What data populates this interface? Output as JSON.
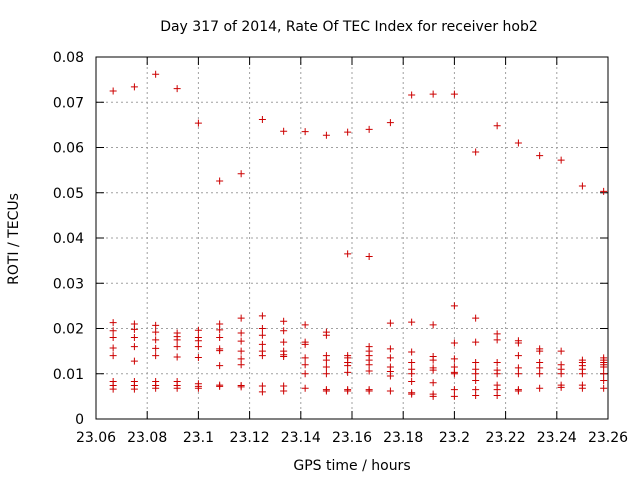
{
  "chart_data": {
    "type": "scatter",
    "title": "Day 317 of 2014, Rate Of TEC Index for receiver hob2",
    "xlabel": "GPS time / hours",
    "ylabel": "ROTI / TECUs",
    "xlim": [
      23.06,
      23.26
    ],
    "ylim": [
      0,
      0.08
    ],
    "xticks": [
      23.06,
      23.08,
      23.1,
      23.12,
      23.14,
      23.16,
      23.18,
      23.2,
      23.22,
      23.24,
      23.26
    ],
    "xtick_labels": [
      "23.06",
      "23.08",
      "23.1",
      "23.12",
      "23.14",
      "23.16",
      "23.18",
      "23.2",
      "23.22",
      "23.24",
      "23.26"
    ],
    "yticks": [
      0,
      0.01,
      0.02,
      0.03,
      0.04,
      0.05,
      0.06,
      0.07,
      0.08
    ],
    "ytick_labels": [
      "0",
      "0.01",
      "0.02",
      "0.03",
      "0.04",
      "0.05",
      "0.06",
      "0.07",
      "0.08"
    ],
    "grid": true,
    "marker": "+",
    "marker_color": "#cc0000",
    "series": [
      {
        "name": "ROTI",
        "points": [
          [
            23.0667,
            0.0725
          ],
          [
            23.0667,
            0.0213
          ],
          [
            23.0667,
            0.0195
          ],
          [
            23.0667,
            0.018
          ],
          [
            23.0667,
            0.0157
          ],
          [
            23.0667,
            0.014
          ],
          [
            23.0667,
            0.0083
          ],
          [
            23.0667,
            0.0074
          ],
          [
            23.0667,
            0.0066
          ],
          [
            23.075,
            0.0734
          ],
          [
            23.075,
            0.021
          ],
          [
            23.075,
            0.0198
          ],
          [
            23.075,
            0.018
          ],
          [
            23.075,
            0.016
          ],
          [
            23.075,
            0.0128
          ],
          [
            23.075,
            0.0083
          ],
          [
            23.075,
            0.0074
          ],
          [
            23.075,
            0.0066
          ],
          [
            23.0833,
            0.0762
          ],
          [
            23.0833,
            0.0207
          ],
          [
            23.0833,
            0.0192
          ],
          [
            23.0833,
            0.0175
          ],
          [
            23.0833,
            0.0156
          ],
          [
            23.0833,
            0.014
          ],
          [
            23.0833,
            0.0083
          ],
          [
            23.0833,
            0.0074
          ],
          [
            23.0833,
            0.0068
          ],
          [
            23.0917,
            0.073
          ],
          [
            23.0917,
            0.019
          ],
          [
            23.0917,
            0.0182
          ],
          [
            23.0917,
            0.0175
          ],
          [
            23.0917,
            0.016
          ],
          [
            23.0917,
            0.0137
          ],
          [
            23.0917,
            0.0083
          ],
          [
            23.0917,
            0.0074
          ],
          [
            23.0917,
            0.0068
          ],
          [
            23.1,
            0.0654
          ],
          [
            23.1,
            0.0196
          ],
          [
            23.1,
            0.018
          ],
          [
            23.1,
            0.0173
          ],
          [
            23.1,
            0.016
          ],
          [
            23.1,
            0.0136
          ],
          [
            23.1,
            0.0078
          ],
          [
            23.1,
            0.0072
          ],
          [
            23.1,
            0.0068
          ],
          [
            23.1083,
            0.0526
          ],
          [
            23.1083,
            0.021
          ],
          [
            23.1083,
            0.0197
          ],
          [
            23.1083,
            0.018
          ],
          [
            23.1083,
            0.0155
          ],
          [
            23.1083,
            0.0151
          ],
          [
            23.1083,
            0.0118
          ],
          [
            23.1083,
            0.0075
          ],
          [
            23.1083,
            0.0072
          ],
          [
            23.1167,
            0.0542
          ],
          [
            23.1167,
            0.0223
          ],
          [
            23.1167,
            0.019
          ],
          [
            23.1167,
            0.0172
          ],
          [
            23.1167,
            0.015
          ],
          [
            23.1167,
            0.0133
          ],
          [
            23.1167,
            0.012
          ],
          [
            23.1167,
            0.0074
          ],
          [
            23.1167,
            0.0071
          ],
          [
            23.125,
            0.0662
          ],
          [
            23.125,
            0.0228
          ],
          [
            23.125,
            0.02
          ],
          [
            23.125,
            0.0185
          ],
          [
            23.125,
            0.0165
          ],
          [
            23.125,
            0.015
          ],
          [
            23.125,
            0.014
          ],
          [
            23.125,
            0.0073
          ],
          [
            23.125,
            0.006
          ],
          [
            23.1333,
            0.0636
          ],
          [
            23.1333,
            0.0216
          ],
          [
            23.1333,
            0.0195
          ],
          [
            23.1333,
            0.017
          ],
          [
            23.1333,
            0.015
          ],
          [
            23.1333,
            0.0142
          ],
          [
            23.1333,
            0.0138
          ],
          [
            23.1333,
            0.0073
          ],
          [
            23.1333,
            0.0062
          ],
          [
            23.1417,
            0.0635
          ],
          [
            23.1417,
            0.0208
          ],
          [
            23.1417,
            0.017
          ],
          [
            23.1417,
            0.0165
          ],
          [
            23.1417,
            0.0135
          ],
          [
            23.1417,
            0.012
          ],
          [
            23.1417,
            0.01
          ],
          [
            23.1417,
            0.0068
          ],
          [
            23.15,
            0.0627
          ],
          [
            23.15,
            0.0192
          ],
          [
            23.15,
            0.0185
          ],
          [
            23.15,
            0.014
          ],
          [
            23.15,
            0.013
          ],
          [
            23.15,
            0.0115
          ],
          [
            23.15,
            0.01
          ],
          [
            23.15,
            0.0065
          ],
          [
            23.15,
            0.0062
          ],
          [
            23.1583,
            0.0634
          ],
          [
            23.1583,
            0.0365
          ],
          [
            23.1583,
            0.014
          ],
          [
            23.1583,
            0.0135
          ],
          [
            23.1583,
            0.0125
          ],
          [
            23.1583,
            0.0118
          ],
          [
            23.1583,
            0.0103
          ],
          [
            23.1583,
            0.0065
          ],
          [
            23.1583,
            0.0062
          ],
          [
            23.1667,
            0.064
          ],
          [
            23.1667,
            0.0359
          ],
          [
            23.1667,
            0.016
          ],
          [
            23.1667,
            0.015
          ],
          [
            23.1667,
            0.014
          ],
          [
            23.1667,
            0.013
          ],
          [
            23.1667,
            0.012
          ],
          [
            23.1667,
            0.0106
          ],
          [
            23.1667,
            0.0065
          ],
          [
            23.1667,
            0.0062
          ],
          [
            23.175,
            0.0655
          ],
          [
            23.175,
            0.0212
          ],
          [
            23.175,
            0.0155
          ],
          [
            23.175,
            0.0135
          ],
          [
            23.175,
            0.0115
          ],
          [
            23.175,
            0.0105
          ],
          [
            23.175,
            0.0095
          ],
          [
            23.175,
            0.0062
          ],
          [
            23.1833,
            0.0716
          ],
          [
            23.1833,
            0.0214
          ],
          [
            23.1833,
            0.0148
          ],
          [
            23.1833,
            0.0125
          ],
          [
            23.1833,
            0.011
          ],
          [
            23.1833,
            0.01
          ],
          [
            23.1833,
            0.0083
          ],
          [
            23.1833,
            0.0058
          ],
          [
            23.1833,
            0.0055
          ],
          [
            23.1917,
            0.0718
          ],
          [
            23.1917,
            0.0208
          ],
          [
            23.1917,
            0.0138
          ],
          [
            23.1917,
            0.013
          ],
          [
            23.1917,
            0.0113
          ],
          [
            23.1917,
            0.0108
          ],
          [
            23.1917,
            0.008
          ],
          [
            23.1917,
            0.0055
          ],
          [
            23.1917,
            0.005
          ],
          [
            23.2,
            0.0718
          ],
          [
            23.2,
            0.025
          ],
          [
            23.2,
            0.0168
          ],
          [
            23.2,
            0.0133
          ],
          [
            23.2,
            0.0115
          ],
          [
            23.2,
            0.0103
          ],
          [
            23.2,
            0.01
          ],
          [
            23.2,
            0.0065
          ],
          [
            23.2,
            0.005
          ],
          [
            23.2083,
            0.059
          ],
          [
            23.2083,
            0.0223
          ],
          [
            23.2083,
            0.017
          ],
          [
            23.2083,
            0.0125
          ],
          [
            23.2083,
            0.011
          ],
          [
            23.2083,
            0.01
          ],
          [
            23.2083,
            0.0085
          ],
          [
            23.2083,
            0.0065
          ],
          [
            23.2083,
            0.0052
          ],
          [
            23.2167,
            0.0648
          ],
          [
            23.2167,
            0.0188
          ],
          [
            23.2167,
            0.0175
          ],
          [
            23.2167,
            0.0125
          ],
          [
            23.2167,
            0.0108
          ],
          [
            23.2167,
            0.01
          ],
          [
            23.2167,
            0.0075
          ],
          [
            23.2167,
            0.0065
          ],
          [
            23.2167,
            0.0052
          ],
          [
            23.225,
            0.061
          ],
          [
            23.225,
            0.0173
          ],
          [
            23.225,
            0.0168
          ],
          [
            23.225,
            0.014
          ],
          [
            23.225,
            0.0113
          ],
          [
            23.225,
            0.01
          ],
          [
            23.225,
            0.0065
          ],
          [
            23.225,
            0.0062
          ],
          [
            23.2333,
            0.0582
          ],
          [
            23.2333,
            0.0155
          ],
          [
            23.2333,
            0.015
          ],
          [
            23.2333,
            0.0125
          ],
          [
            23.2333,
            0.0113
          ],
          [
            23.2333,
            0.01
          ],
          [
            23.2333,
            0.0068
          ],
          [
            23.2417,
            0.0572
          ],
          [
            23.2417,
            0.015
          ],
          [
            23.2417,
            0.012
          ],
          [
            23.2417,
            0.011
          ],
          [
            23.2417,
            0.01
          ],
          [
            23.2417,
            0.0075
          ],
          [
            23.2417,
            0.007
          ],
          [
            23.25,
            0.0515
          ],
          [
            23.25,
            0.013
          ],
          [
            23.25,
            0.0125
          ],
          [
            23.25,
            0.0118
          ],
          [
            23.25,
            0.011
          ],
          [
            23.25,
            0.01
          ],
          [
            23.25,
            0.0075
          ],
          [
            23.25,
            0.0068
          ],
          [
            23.2583,
            0.0503
          ],
          [
            23.2583,
            0.0135
          ],
          [
            23.2583,
            0.013
          ],
          [
            23.2583,
            0.0125
          ],
          [
            23.2583,
            0.012
          ],
          [
            23.2583,
            0.0115
          ],
          [
            23.2583,
            0.01
          ],
          [
            23.2583,
            0.0085
          ],
          [
            23.2583,
            0.0068
          ]
        ]
      }
    ]
  }
}
